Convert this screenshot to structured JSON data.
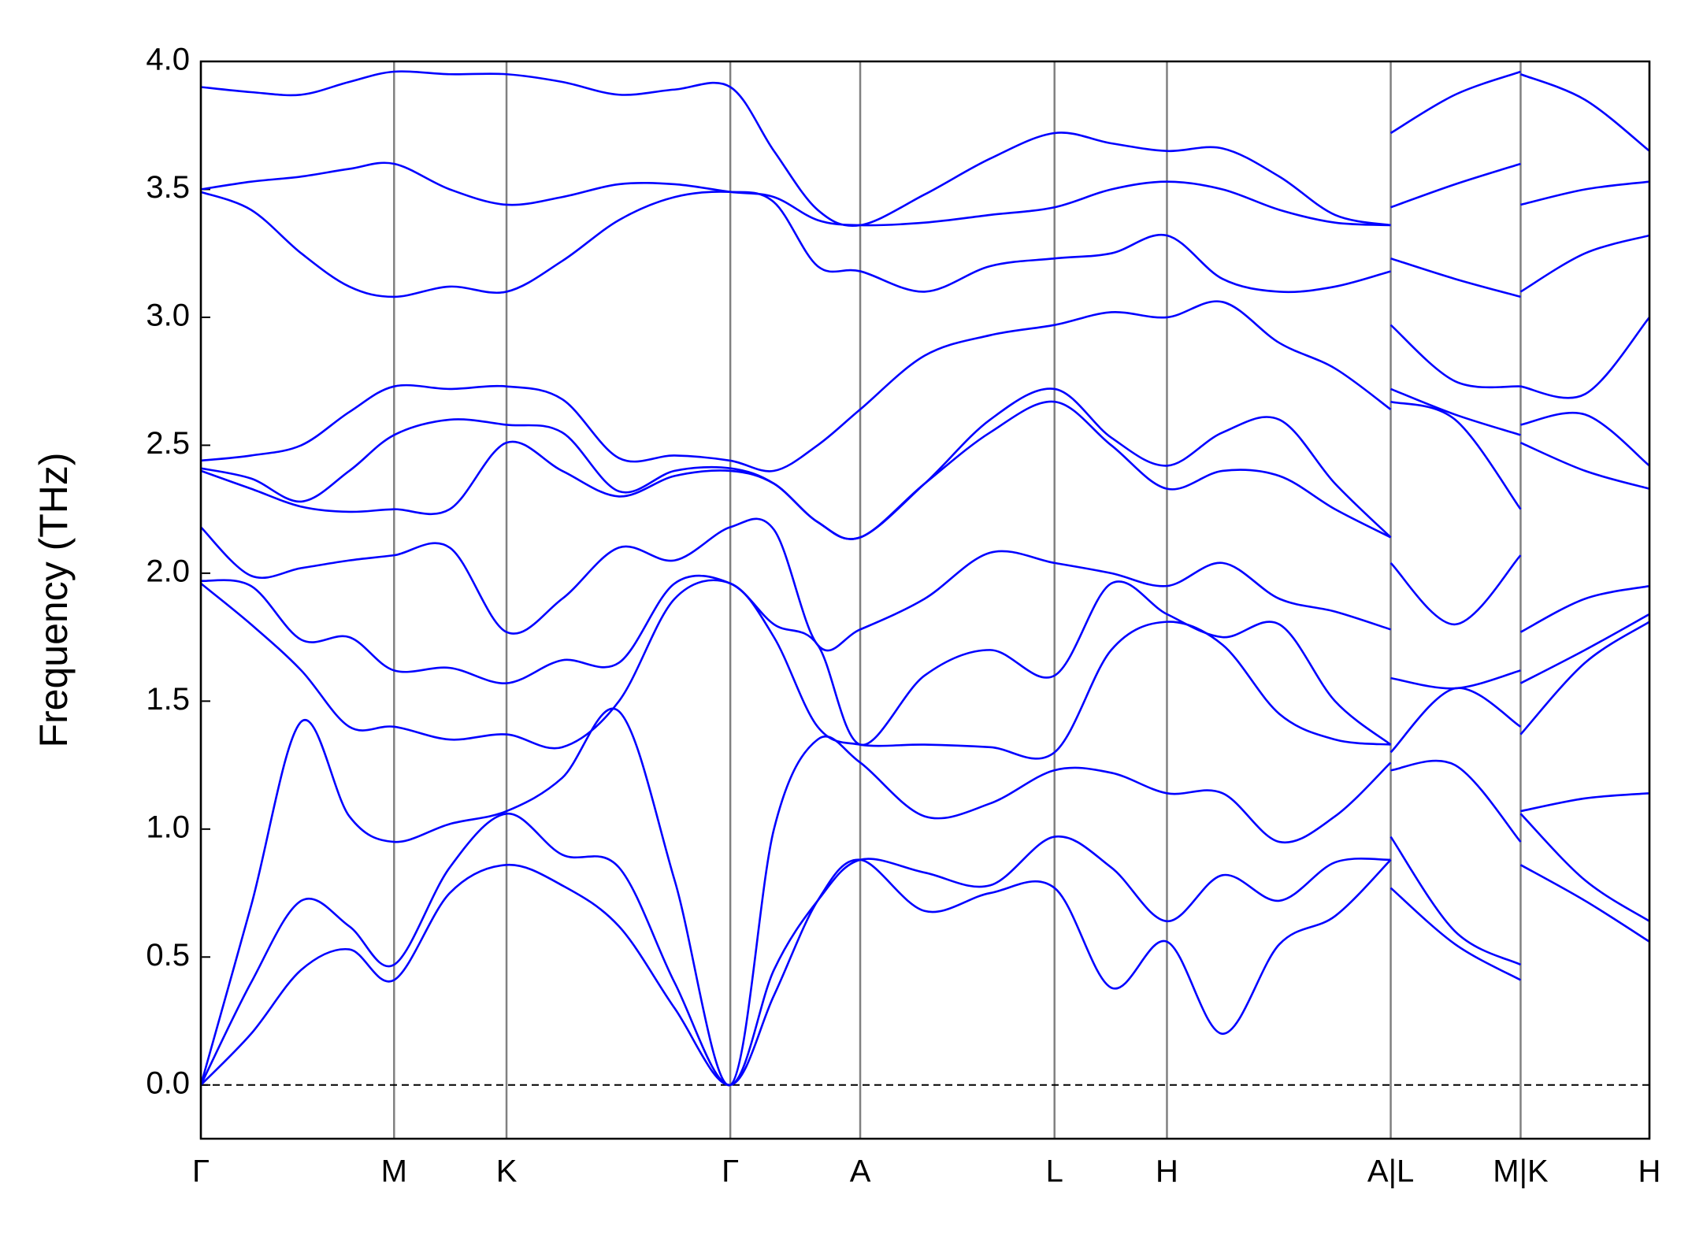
{
  "chart_data": {
    "type": "line",
    "ylabel": "Frequency (THz)",
    "color": "#0000ff",
    "grid": "x",
    "hline": 0,
    "xlim": [
      0,
      13.27
    ],
    "xticks": [
      {
        "value": 0,
        "label": "Γ"
      },
      {
        "value": 1.77,
        "label": "M"
      },
      {
        "value": 2.8,
        "label": "K"
      },
      {
        "value": 4.85,
        "label": "Γ"
      },
      {
        "value": 6.04,
        "label": "A"
      },
      {
        "value": 7.82,
        "label": "L"
      },
      {
        "value": 8.85,
        "label": "H"
      },
      {
        "value": 10.9,
        "label": "A|L"
      },
      {
        "value": 12.09,
        "label": "M|K"
      },
      {
        "value": 13.27,
        "label": "H"
      }
    ],
    "ylim": [
      -0.21,
      4.0
    ],
    "yticks": [
      {
        "value": 0,
        "label": "0.0"
      },
      0.5,
      {
        "value": 1,
        "label": "1.0"
      },
      1.5,
      {
        "value": 2,
        "label": "2.0"
      },
      2.5,
      {
        "value": 3,
        "label": "3.0"
      },
      3.5,
      {
        "value": 4,
        "label": "4.0"
      }
    ],
    "x": [
      0,
      0.46,
      0.92,
      1.36,
      1.77,
      2.28,
      2.8,
      3.31,
      3.83,
      4.34,
      4.85,
      5.25,
      5.65,
      6.04,
      6.63,
      7.23,
      7.82,
      8.34,
      8.85,
      9.36,
      9.88,
      10.39,
      10.9,
      null,
      10.9,
      11.49,
      12.09,
      null,
      12.09,
      12.68,
      13.27
    ],
    "series": [
      {
        "values": [
          0,
          0.2,
          0.45,
          0.53,
          0.41,
          0.75,
          0.86,
          0.78,
          0.62,
          0.3,
          0,
          0.35,
          0.72,
          0.88,
          0.68,
          0.75,
          0.77,
          0.38,
          0.56,
          0.2,
          0.55,
          0.66,
          0.88,
          null,
          0.77,
          0.55,
          0.41,
          null,
          0.86,
          0.72,
          0.56
        ]
      },
      {
        "values": [
          0,
          0.4,
          0.72,
          0.62,
          0.47,
          0.85,
          1.06,
          0.9,
          0.85,
          0.4,
          0,
          0.45,
          0.72,
          0.88,
          0.83,
          0.78,
          0.97,
          0.85,
          0.64,
          0.82,
          0.72,
          0.87,
          0.88,
          null,
          0.97,
          0.6,
          0.47,
          null,
          1.06,
          0.8,
          0.64
        ]
      },
      {
        "values": [
          0,
          0.7,
          1.42,
          1.05,
          0.95,
          1.02,
          1.07,
          1.2,
          1.46,
          0.8,
          0,
          1.0,
          1.35,
          1.26,
          1.05,
          1.1,
          1.23,
          1.22,
          1.14,
          1.14,
          0.95,
          1.05,
          1.26,
          null,
          1.23,
          1.25,
          0.95,
          null,
          1.07,
          1.12,
          1.14
        ]
      },
      {
        "values": [
          1.96,
          1.8,
          1.62,
          1.4,
          1.4,
          1.35,
          1.37,
          1.32,
          1.5,
          1.9,
          1.96,
          1.75,
          1.4,
          1.33,
          1.33,
          1.32,
          1.3,
          1.7,
          1.81,
          1.72,
          1.45,
          1.35,
          1.33,
          null,
          1.3,
          1.55,
          1.4,
          null,
          1.37,
          1.65,
          1.81
        ]
      },
      {
        "values": [
          1.97,
          1.95,
          1.74,
          1.75,
          1.62,
          1.63,
          1.57,
          1.66,
          1.65,
          1.96,
          1.96,
          1.8,
          1.72,
          1.33,
          1.6,
          1.7,
          1.6,
          1.96,
          1.84,
          1.75,
          1.8,
          1.5,
          1.33,
          null,
          1.59,
          1.55,
          1.62,
          null,
          1.57,
          1.7,
          1.84
        ]
      },
      {
        "values": [
          2.18,
          1.99,
          2.02,
          2.05,
          2.07,
          2.1,
          1.77,
          1.9,
          2.1,
          2.05,
          2.18,
          2.17,
          1.72,
          1.78,
          1.9,
          2.08,
          2.04,
          2.0,
          1.95,
          2.04,
          1.9,
          1.85,
          1.78,
          null,
          2.04,
          1.8,
          2.07,
          null,
          1.77,
          1.9,
          1.95
        ]
      },
      {
        "values": [
          2.4,
          2.33,
          2.26,
          2.24,
          2.25,
          2.25,
          2.51,
          2.4,
          2.3,
          2.38,
          2.4,
          2.35,
          2.2,
          2.14,
          2.35,
          2.55,
          2.67,
          2.5,
          2.33,
          2.4,
          2.38,
          2.25,
          2.14,
          null,
          2.67,
          2.6,
          2.25,
          null,
          2.51,
          2.4,
          2.33
        ]
      },
      {
        "values": [
          2.41,
          2.37,
          2.28,
          2.4,
          2.54,
          2.6,
          2.58,
          2.55,
          2.32,
          2.4,
          2.41,
          2.35,
          2.2,
          2.14,
          2.35,
          2.6,
          2.72,
          2.53,
          2.42,
          2.55,
          2.6,
          2.35,
          2.14,
          null,
          2.72,
          2.62,
          2.54,
          null,
          2.58,
          2.62,
          2.42
        ]
      },
      {
        "values": [
          2.44,
          2.46,
          2.5,
          2.63,
          2.73,
          2.72,
          2.73,
          2.68,
          2.45,
          2.46,
          2.44,
          2.4,
          2.5,
          2.64,
          2.85,
          2.93,
          2.97,
          3.02,
          3.0,
          3.06,
          2.9,
          2.8,
          2.64,
          null,
          2.97,
          2.75,
          2.73,
          null,
          2.73,
          2.7,
          3.0
        ]
      },
      {
        "values": [
          3.49,
          3.42,
          3.25,
          3.12,
          3.08,
          3.12,
          3.1,
          3.22,
          3.38,
          3.47,
          3.49,
          3.45,
          3.2,
          3.18,
          3.1,
          3.2,
          3.23,
          3.25,
          3.32,
          3.15,
          3.1,
          3.12,
          3.18,
          null,
          3.23,
          3.15,
          3.08,
          null,
          3.1,
          3.25,
          3.32
        ]
      },
      {
        "values": [
          3.5,
          3.53,
          3.55,
          3.58,
          3.6,
          3.5,
          3.44,
          3.47,
          3.52,
          3.52,
          3.49,
          3.47,
          3.38,
          3.36,
          3.37,
          3.4,
          3.43,
          3.5,
          3.53,
          3.5,
          3.42,
          3.37,
          3.36,
          null,
          3.43,
          3.52,
          3.6,
          null,
          3.44,
          3.5,
          3.53
        ]
      },
      {
        "values": [
          3.9,
          3.88,
          3.87,
          3.92,
          3.96,
          3.95,
          3.95,
          3.92,
          3.87,
          3.89,
          3.9,
          3.65,
          3.42,
          3.36,
          3.48,
          3.62,
          3.72,
          3.68,
          3.65,
          3.66,
          3.55,
          3.4,
          3.36,
          null,
          3.72,
          3.87,
          3.96,
          null,
          3.95,
          3.85,
          3.65
        ]
      }
    ]
  }
}
